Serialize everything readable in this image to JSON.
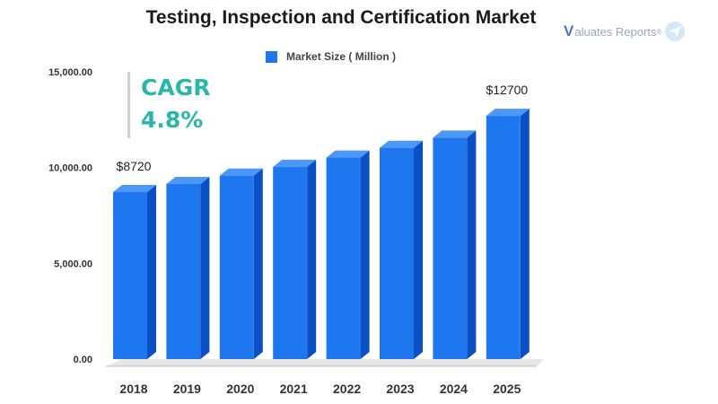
{
  "chart_data": {
    "type": "bar",
    "title": "Testing, Inspection and Certification Market",
    "categories": [
      "2018",
      "2019",
      "2020",
      "2021",
      "2022",
      "2023",
      "2024",
      "2025"
    ],
    "series": [
      {
        "name": "Market Size ( Million )",
        "values": [
          8720,
          9140,
          9580,
          10040,
          10520,
          11030,
          11560,
          12700
        ]
      }
    ],
    "data_labels": [
      {
        "category": "2018",
        "text": "$8720"
      },
      {
        "category": "2025",
        "text": "$12700"
      }
    ],
    "yticks": [
      "0.00",
      "5,000.00",
      "10,000.00",
      "15,000.00"
    ],
    "ytick_values": [
      0,
      5000,
      10000,
      15000
    ],
    "ylim": [
      0,
      15000
    ],
    "xlabel": "",
    "ylabel": "",
    "grid": false,
    "legend_position": "top-center",
    "bar_color": "#1f77f0",
    "bar_side_color": "#0b4fc4",
    "bar_top_color": "#4c97f7"
  },
  "annotation": {
    "label": "CAGR",
    "value": "4.8%",
    "color": "#2ab7a9"
  },
  "logo": {
    "mark": "V",
    "text": "aluates Reports",
    "reg": "®"
  }
}
